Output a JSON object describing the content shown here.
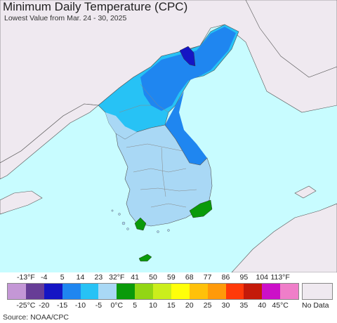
{
  "title": "Minimum Daily Temperature (CPC)",
  "subtitle": "Lowest Value from Mar. 24 - 30, 2025",
  "source": "Source: NOAA/CPC",
  "legend": {
    "colors": [
      "#c497d6",
      "#673d96",
      "#1515c4",
      "#1f86f0",
      "#27c2f5",
      "#a9d8f5",
      "#0a9a0a",
      "#92d614",
      "#cbee1c",
      "#ffff0a",
      "#ffc10a",
      "#ff9a0a",
      "#ff3a0a",
      "#c41a0a",
      "#cc10c8",
      "#ef7ec9"
    ],
    "top_labels": [
      "-13°F",
      "-4",
      "5",
      "14",
      "23",
      "32°F",
      "41",
      "50",
      "59",
      "68",
      "77",
      "86",
      "95",
      "104",
      "113°F"
    ],
    "bottom_labels": [
      "-25°C",
      "-20",
      "-15",
      "-10",
      "-5",
      "0°C",
      "5",
      "10",
      "15",
      "20",
      "25",
      "30",
      "35",
      "40",
      "45°C"
    ],
    "no_data_label": "No Data",
    "no_data_color": "#efe9f0"
  },
  "map_colors": {
    "ocean": "#c8fcff",
    "no_data_land": "#efe9f0",
    "minus_10_to_minus_5": "#27c2f5",
    "minus_15_to_minus_10": "#1f86f0",
    "minus_20_to_minus_15": "#1515c4",
    "minus_5_to_0": "#a9d8f5",
    "zero_to_5": "#0a9a0a"
  }
}
